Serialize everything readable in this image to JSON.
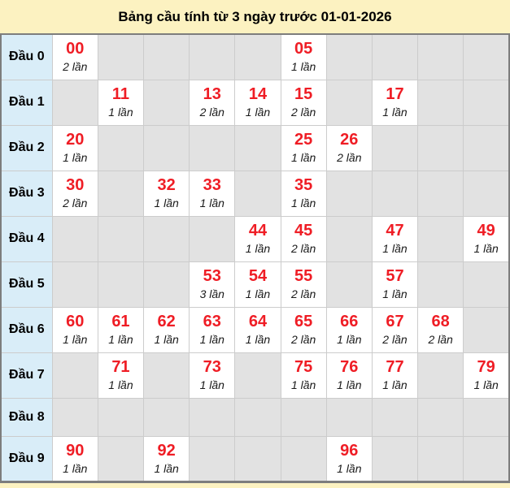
{
  "title": "Bảng cầu tính từ 3 ngày trước 01-01-2026",
  "colors": {
    "page_bg": "#fcf2c1",
    "label_bg": "#d9edf8",
    "empty_bg": "#e2e2e2",
    "filled_bg": "#ffffff",
    "number_red": "#ef1d25",
    "count_text": "#1a1a1a",
    "grid_line": "#cccccc",
    "outer_border": "#7d7d7d",
    "title_text": "#000000"
  },
  "table": {
    "rows": [
      {
        "label": "Đầu 0",
        "cells": [
          {
            "num": "00",
            "count": "2 lần"
          },
          null,
          null,
          null,
          null,
          {
            "num": "05",
            "count": "1 lần"
          },
          null,
          null,
          null,
          null
        ]
      },
      {
        "label": "Đầu 1",
        "cells": [
          null,
          {
            "num": "11",
            "count": "1 lần"
          },
          null,
          {
            "num": "13",
            "count": "2 lần"
          },
          {
            "num": "14",
            "count": "1 lần"
          },
          {
            "num": "15",
            "count": "2 lần"
          },
          null,
          {
            "num": "17",
            "count": "1 lần"
          },
          null,
          null
        ]
      },
      {
        "label": "Đầu 2",
        "cells": [
          {
            "num": "20",
            "count": "1 lần"
          },
          null,
          null,
          null,
          null,
          {
            "num": "25",
            "count": "1 lần"
          },
          {
            "num": "26",
            "count": "2 lần"
          },
          null,
          null,
          null
        ]
      },
      {
        "label": "Đầu 3",
        "cells": [
          {
            "num": "30",
            "count": "2 lần"
          },
          null,
          {
            "num": "32",
            "count": "1 lần"
          },
          {
            "num": "33",
            "count": "1 lần"
          },
          null,
          {
            "num": "35",
            "count": "1 lần"
          },
          null,
          null,
          null,
          null
        ]
      },
      {
        "label": "Đầu 4",
        "cells": [
          null,
          null,
          null,
          null,
          {
            "num": "44",
            "count": "1 lần"
          },
          {
            "num": "45",
            "count": "2 lần"
          },
          null,
          {
            "num": "47",
            "count": "1 lần"
          },
          null,
          {
            "num": "49",
            "count": "1 lần"
          }
        ]
      },
      {
        "label": "Đầu 5",
        "cells": [
          null,
          null,
          null,
          {
            "num": "53",
            "count": "3 lần"
          },
          {
            "num": "54",
            "count": "1 lần"
          },
          {
            "num": "55",
            "count": "2 lần"
          },
          null,
          {
            "num": "57",
            "count": "1 lần"
          },
          null,
          null
        ]
      },
      {
        "label": "Đầu 6",
        "cells": [
          {
            "num": "60",
            "count": "1 lần"
          },
          {
            "num": "61",
            "count": "1 lần"
          },
          {
            "num": "62",
            "count": "1 lần"
          },
          {
            "num": "63",
            "count": "1 lần"
          },
          {
            "num": "64",
            "count": "1 lần"
          },
          {
            "num": "65",
            "count": "2 lần"
          },
          {
            "num": "66",
            "count": "1 lần"
          },
          {
            "num": "67",
            "count": "2 lần"
          },
          {
            "num": "68",
            "count": "2 lần"
          },
          null
        ]
      },
      {
        "label": "Đầu 7",
        "cells": [
          null,
          {
            "num": "71",
            "count": "1 lần"
          },
          null,
          {
            "num": "73",
            "count": "1 lần"
          },
          null,
          {
            "num": "75",
            "count": "1 lần"
          },
          {
            "num": "76",
            "count": "1 lần"
          },
          {
            "num": "77",
            "count": "1 lần"
          },
          null,
          {
            "num": "79",
            "count": "1 lần"
          }
        ]
      },
      {
        "label": "Đầu 8",
        "cells": [
          null,
          null,
          null,
          null,
          null,
          null,
          null,
          null,
          null,
          null
        ]
      },
      {
        "label": "Đầu 9",
        "cells": [
          {
            "num": "90",
            "count": "1 lần"
          },
          null,
          {
            "num": "92",
            "count": "1 lần"
          },
          null,
          null,
          null,
          {
            "num": "96",
            "count": "1 lần"
          },
          null,
          null,
          null
        ]
      }
    ]
  }
}
